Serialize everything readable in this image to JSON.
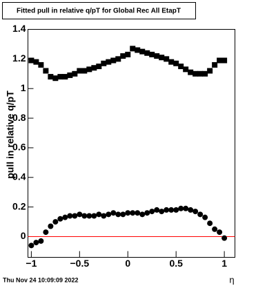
{
  "chart_data": {
    "type": "scatter",
    "title": "Fitted pull in relative q/pT for Global Rec All EtapT",
    "y_label": "pull in relative q/pT",
    "x_label": "η",
    "timestamp": "Thu Nov 24 10:09:09 2022",
    "x": [
      -1,
      -0.95,
      -0.9,
      -0.85,
      -0.8,
      -0.75,
      -0.7,
      -0.65,
      -0.6,
      -0.55,
      -0.5,
      -0.45,
      -0.4,
      -0.35,
      -0.3,
      -0.25,
      -0.2,
      -0.15,
      -0.1,
      -0.05,
      0,
      0.05,
      0.1,
      0.15,
      0.2,
      0.25,
      0.3,
      0.35,
      0.4,
      0.45,
      0.5,
      0.55,
      0.6,
      0.65,
      0.7,
      0.75,
      0.8,
      0.85,
      0.9,
      0.95,
      1
    ],
    "series": [
      {
        "color": "#000000",
        "marker": "square",
        "values": [
          1.19,
          1.18,
          1.16,
          1.12,
          1.08,
          1.07,
          1.08,
          1.08,
          1.09,
          1.1,
          1.12,
          1.12,
          1.13,
          1.14,
          1.15,
          1.17,
          1.18,
          1.19,
          1.2,
          1.22,
          1.23,
          1.27,
          1.26,
          1.25,
          1.24,
          1.23,
          1.22,
          1.21,
          1.2,
          1.18,
          1.17,
          1.15,
          1.13,
          1.11,
          1.1,
          1.1,
          1.1,
          1.12,
          1.16,
          1.19,
          1.19
        ]
      },
      {
        "color": "#000000",
        "marker": "circle",
        "values": [
          -0.06,
          -0.04,
          -0.03,
          0.03,
          0.07,
          0.1,
          0.12,
          0.13,
          0.14,
          0.14,
          0.15,
          0.14,
          0.14,
          0.14,
          0.15,
          0.14,
          0.15,
          0.16,
          0.15,
          0.15,
          0.16,
          0.16,
          0.16,
          0.15,
          0.16,
          0.17,
          0.18,
          0.17,
          0.18,
          0.18,
          0.18,
          0.19,
          0.19,
          0.18,
          0.17,
          0.15,
          0.13,
          0.09,
          0.05,
          0.03,
          -0.01
        ]
      }
    ],
    "reference_line": {
      "value": 0,
      "color": "#ff0000"
    },
    "xlim": [
      -1.035,
      1.11
    ],
    "ylim": [
      -0.14,
      1.4
    ],
    "xticks": [
      {
        "value": -1,
        "label": "−1"
      },
      {
        "value": -0.5,
        "label": "−0.5"
      },
      0,
      0.5,
      1
    ],
    "yticks": [
      0,
      0.2,
      0.4,
      0.6,
      0.8,
      1,
      1.2,
      1.4
    ]
  }
}
